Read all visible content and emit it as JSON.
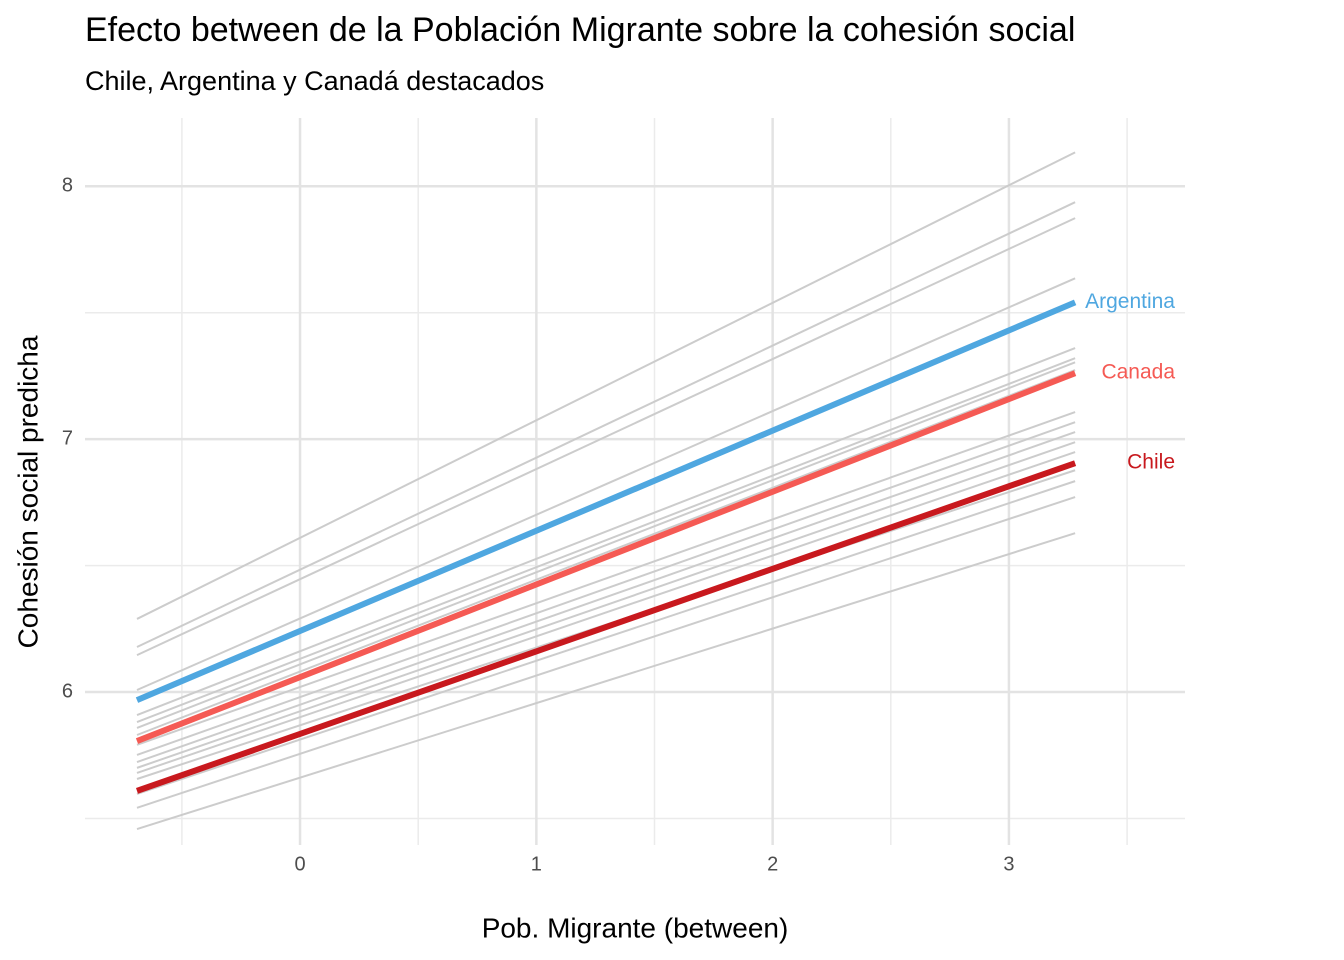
{
  "chart_data": {
    "type": "line",
    "title": "Efecto between de la Población Migrante sobre la cohesión social",
    "subtitle": "Chile, Argentina y Canadá destacados",
    "x_label": "Pob. Migrante (between)",
    "y_label": "Cohesión social predicha",
    "x": [
      -0.69,
      3.28
    ],
    "xlim": [
      -0.91,
      3.745
    ],
    "ylim": [
      5.395,
      8.27
    ],
    "xticks": [
      0,
      1,
      2,
      3
    ],
    "yticks": [
      6,
      7,
      8
    ],
    "x_minor_grid": [
      -0.5,
      0.5,
      1.5,
      2.5,
      3.5
    ],
    "y_minor_grid": [
      5.5,
      6.5,
      7.5
    ],
    "grid": true,
    "series": [
      {
        "color": "#cccccc",
        "values": [
          6.289,
          8.134
        ]
      },
      {
        "color": "#cccccc",
        "values": [
          6.178,
          7.937
        ]
      },
      {
        "color": "#cccccc",
        "values": [
          6.146,
          7.874
        ]
      },
      {
        "color": "#cccccc",
        "values": [
          6.008,
          7.636
        ]
      },
      {
        "color": "#cccccc",
        "values": [
          5.909,
          7.36
        ]
      },
      {
        "color": "#cccccc",
        "values": [
          5.881,
          7.32
        ]
      },
      {
        "color": "#cccccc",
        "values": [
          5.858,
          7.304
        ]
      },
      {
        "color": "#cccccc",
        "values": [
          5.83,
          7.273
        ]
      },
      {
        "color": "#cccccc",
        "values": [
          5.791,
          7.107
        ]
      },
      {
        "color": "#cccccc",
        "values": [
          5.751,
          7.067
        ]
      },
      {
        "color": "#cccccc",
        "values": [
          5.723,
          7.028
        ]
      },
      {
        "color": "#cccccc",
        "values": [
          5.7,
          6.988
        ]
      },
      {
        "color": "#cccccc",
        "values": [
          5.68,
          6.949
        ]
      },
      {
        "color": "#cccccc",
        "values": [
          5.656,
          6.877
        ]
      },
      {
        "color": "#cccccc",
        "values": [
          5.597,
          6.834
        ]
      },
      {
        "color": "#cccccc",
        "values": [
          5.542,
          6.771
        ]
      },
      {
        "color": "#cccccc",
        "values": [
          5.458,
          6.628
        ]
      },
      {
        "name": "Argentina",
        "color": "#4fa7e0",
        "values": [
          5.968,
          7.541
        ]
      },
      {
        "name": "Canada",
        "color": "#f55a54",
        "values": [
          5.806,
          7.261
        ]
      },
      {
        "name": "Chile",
        "color": "#c8191e",
        "values": [
          5.609,
          6.905
        ]
      }
    ]
  }
}
